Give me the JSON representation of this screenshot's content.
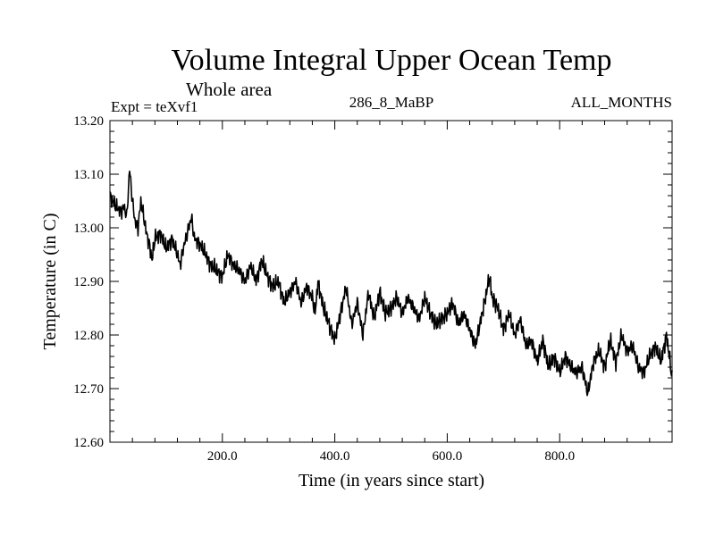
{
  "chart_data": {
    "type": "line",
    "title": "Volume Integral Upper Ocean Temp",
    "subtitle": "Whole area",
    "expt": "Expt = teXvf1",
    "run": "286_8_MaBP",
    "months": "ALL_MONTHS",
    "xlabel": "Time (in years since start)",
    "ylabel": "Temperature (in C)",
    "xlim": [
      0,
      1000
    ],
    "ylim": [
      12.6,
      13.2
    ],
    "xticks": [
      200,
      400,
      600,
      800
    ],
    "xtick_labels": [
      "200.0",
      "400.0",
      "600.0",
      "800.0"
    ],
    "yticks": [
      12.6,
      12.7,
      12.8,
      12.9,
      13.0,
      13.1,
      13.2
    ],
    "ytick_labels": [
      "12.60",
      "12.70",
      "12.80",
      "12.90",
      "13.00",
      "13.10",
      "13.20"
    ],
    "grid": false,
    "series": [
      {
        "name": "Temperature",
        "x": [
          0,
          10,
          20,
          25,
          30,
          35,
          40,
          45,
          50,
          55,
          60,
          65,
          70,
          75,
          80,
          90,
          100,
          110,
          120,
          125,
          130,
          140,
          145,
          150,
          160,
          170,
          180,
          190,
          200,
          210,
          220,
          230,
          240,
          250,
          260,
          270,
          280,
          290,
          300,
          310,
          320,
          330,
          340,
          350,
          360,
          365,
          370,
          380,
          390,
          400,
          410,
          420,
          430,
          440,
          450,
          460,
          470,
          480,
          490,
          500,
          510,
          520,
          530,
          540,
          550,
          560,
          570,
          580,
          590,
          600,
          610,
          620,
          630,
          640,
          650,
          660,
          670,
          675,
          680,
          690,
          700,
          710,
          720,
          730,
          740,
          750,
          760,
          770,
          780,
          790,
          800,
          810,
          820,
          830,
          840,
          850,
          860,
          870,
          880,
          890,
          900,
          910,
          920,
          930,
          940,
          950,
          960,
          970,
          980,
          990,
          1000
        ],
        "values": [
          13.06,
          13.04,
          13.03,
          13.04,
          13.02,
          13.11,
          13.05,
          13.01,
          13.0,
          13.05,
          13.02,
          12.99,
          12.97,
          12.94,
          12.98,
          12.99,
          12.96,
          12.98,
          12.95,
          12.93,
          12.96,
          13.0,
          13.02,
          12.98,
          12.97,
          12.95,
          12.93,
          12.92,
          12.91,
          12.95,
          12.93,
          12.92,
          12.9,
          12.93,
          12.9,
          12.94,
          12.91,
          12.89,
          12.9,
          12.86,
          12.88,
          12.9,
          12.86,
          12.89,
          12.87,
          12.84,
          12.9,
          12.85,
          12.82,
          12.79,
          12.84,
          12.89,
          12.82,
          12.86,
          12.8,
          12.88,
          12.83,
          12.88,
          12.84,
          12.85,
          12.87,
          12.84,
          12.87,
          12.85,
          12.83,
          12.87,
          12.84,
          12.82,
          12.83,
          12.84,
          12.86,
          12.82,
          12.84,
          12.81,
          12.78,
          12.83,
          12.88,
          12.91,
          12.87,
          12.85,
          12.81,
          12.84,
          12.8,
          12.83,
          12.78,
          12.79,
          12.75,
          12.79,
          12.74,
          12.76,
          12.73,
          12.76,
          12.74,
          12.73,
          12.74,
          12.69,
          12.75,
          12.77,
          12.74,
          12.79,
          12.75,
          12.8,
          12.77,
          12.78,
          12.74,
          12.73,
          12.76,
          12.78,
          12.75,
          12.8,
          12.72
        ]
      }
    ]
  }
}
